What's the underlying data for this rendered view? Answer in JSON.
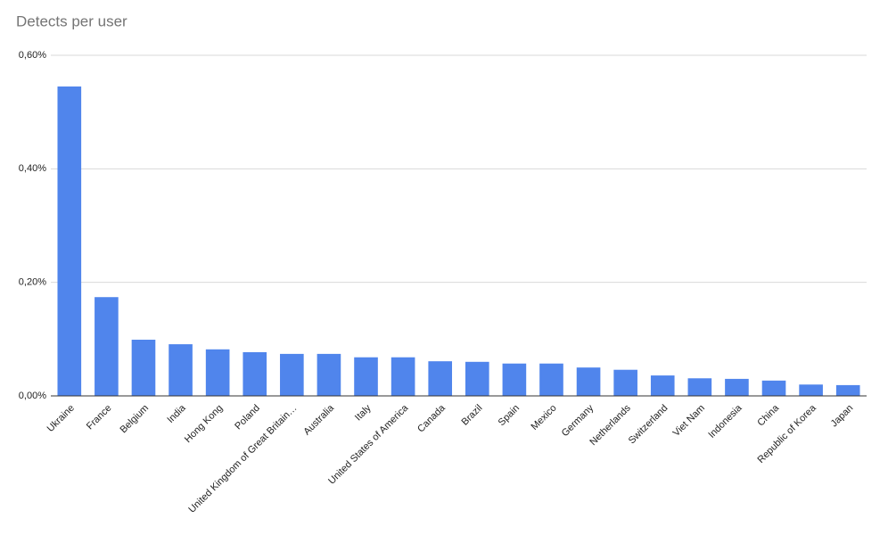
{
  "chart_data": {
    "type": "bar",
    "title": "Detects per user",
    "categories": [
      "Ukraine",
      "France",
      "Belgium",
      "India",
      "Hong Kong",
      "Poland",
      "United Kingdom of Great Britain…",
      "Australia",
      "Italy",
      "United States of America",
      "Canada",
      "Brazil",
      "Spain",
      "Mexico",
      "Germany",
      "Netherlands",
      "Switzerland",
      "Viet Nam",
      "Indonesia",
      "China",
      "Republic of Korea",
      "Japan"
    ],
    "values": [
      0.545,
      0.174,
      0.099,
      0.091,
      0.082,
      0.077,
      0.074,
      0.074,
      0.068,
      0.068,
      0.061,
      0.06,
      0.057,
      0.057,
      0.05,
      0.046,
      0.036,
      0.031,
      0.03,
      0.027,
      0.02,
      0.019
    ],
    "color": "#5085ec",
    "ylim": [
      0,
      0.6
    ],
    "yticks": [
      {
        "value": 0,
        "label": "0,00%"
      },
      {
        "value": 0.2,
        "label": "0,20%"
      },
      {
        "value": 0.4,
        "label": "0,40%"
      },
      {
        "value": 0.6,
        "label": "0,60%"
      }
    ],
    "grid": true
  }
}
